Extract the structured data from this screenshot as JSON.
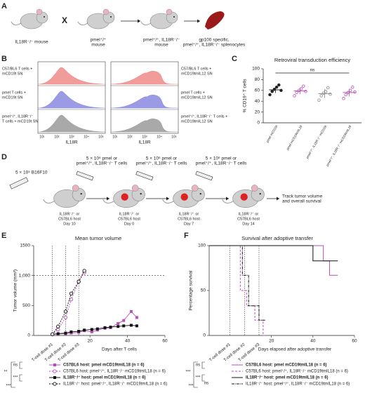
{
  "panels": {
    "A": {
      "letter": "A",
      "cross": "X",
      "labels": [
        [
          "IL18R⁻/⁻ mouse"
        ],
        [
          "pmel⁺/⁺",
          "mouse"
        ],
        [
          "pmel⁺/⁺, IL18R⁻/⁻",
          "mouse"
        ],
        [
          "gp100 specific,",
          "pmel⁺/⁺, IL18R⁻/⁻ splenocytes"
        ]
      ]
    },
    "B": {
      "letter": "B",
      "left_labels": [
        [
          "C57/BL6 T cells +",
          "mCD19t SN"
        ],
        [
          "pmel T cells +",
          "mCD19t SN"
        ],
        [
          "pmel⁺/⁺, IL18R⁻/⁻",
          "T cells + mCD19t SN"
        ]
      ],
      "right_labels": [
        [
          "C57/BL6 T cells +",
          "mCD19tmIL12 SN"
        ],
        [
          "pmel T cells +",
          "mCD19tmIL12 SN"
        ],
        [
          "pmel⁺/⁺, IL18R⁻/⁻ T cells +",
          "mCD19tmIL12 SN"
        ]
      ],
      "colors": [
        "#f08a8a",
        "#8a8ae0",
        "#9a9a9a"
      ],
      "xticks": [
        "10¹",
        "10²",
        "10³",
        "10⁴",
        "10⁵"
      ],
      "xlabel": "IL18R"
    },
    "D": {
      "letter": "D",
      "tumor": [
        "5 × 10⁵ B16F10"
      ],
      "doses": [
        [
          "5 × 10⁶ pmel or",
          "pmel⁺/⁺, IL18R⁻/⁻ T cells"
        ],
        [
          "5 × 10⁶ pmel or",
          "pmel⁺/⁺, IL18R⁻/⁻ T cells"
        ],
        [
          "5 × 10⁶ pmel or",
          "pmel⁺/⁺, IL18R⁻/⁻ T cells"
        ]
      ],
      "hosts": [
        [
          "IL18R⁻/⁻ or",
          "C57BL6 host",
          "Day 10"
        ],
        [
          "IL18R⁻/⁻ or",
          "C57BL6 host",
          "Day 0"
        ],
        [
          "IL18R⁻/⁻ or",
          "C57BL6 host",
          "Day 7"
        ],
        [
          "IL18R⁻/⁻ or",
          "C57BL6 host",
          "Day 14"
        ]
      ],
      "track": [
        "Track tumor volume",
        "and overall survival"
      ]
    }
  },
  "chart_data": [
    {
      "type": "dot",
      "panel": "C",
      "title": "Retroviral transduction efficiency",
      "ylabel": "% CD19⁺ T cells",
      "categories": [
        "pmel mCD19t",
        "pmel mCD19tmIL18",
        "pmel⁺/⁺, IL18R⁻/⁻ mCD19t",
        "pmel⁺/⁺, IL18R⁻/⁻ mCD19tmIL18"
      ],
      "colors": [
        "#222222",
        "#b84fb5",
        "#888888",
        "#b84fb5"
      ],
      "points": [
        [
          52,
          58,
          62,
          66,
          70,
          60
        ],
        [
          50,
          56,
          60,
          63,
          68,
          58
        ],
        [
          42,
          50,
          55,
          58,
          65,
          53
        ],
        [
          45,
          52,
          56,
          60,
          66,
          57
        ]
      ],
      "means": [
        61,
        59,
        54,
        56
      ],
      "sds": [
        6,
        6,
        8,
        7
      ],
      "ylim": [
        0,
        100
      ],
      "yticks": [
        0,
        20,
        40,
        60,
        80,
        100
      ],
      "annotation": "ns"
    },
    {
      "type": "line",
      "panel": "E",
      "title": "Mean tumor volume",
      "ylabel": "Tumor volume (mm³)",
      "xlabel": "Days after T cells",
      "x": [
        0,
        3,
        7,
        10,
        14,
        17,
        21,
        24,
        28,
        31,
        35,
        38,
        42,
        45
      ],
      "series": [
        {
          "name": "C57BL6 host: pmel mCD19tmIL18 (n = 6)",
          "color": "#b84fb5",
          "marker": "square",
          "dash": false,
          "bold": true,
          "values": [
            20,
            25,
            30,
            40,
            50,
            80,
            60,
            90,
            120,
            130,
            200,
            250,
            400,
            300
          ]
        },
        {
          "name": "C57BL6 host: pmel⁺/⁺, IL18R⁻/⁻ mCD19tmIL18 (n = 6)",
          "color": "#b84fb5",
          "marker": "circle",
          "dash": true,
          "bold": false,
          "values": [
            20,
            100,
            300,
            600,
            900,
            1050,
            null,
            null,
            null,
            null,
            null,
            null,
            null,
            null
          ]
        },
        {
          "name": "IL18R⁻/⁻ host: pmel mCD19tmIL18 (n = 6)",
          "color": "#111111",
          "marker": "square",
          "dash": false,
          "bold": true,
          "values": [
            20,
            30,
            40,
            60,
            70,
            90,
            100,
            110,
            130,
            140,
            150,
            160,
            170,
            160
          ]
        },
        {
          "name": "IL18R⁻/⁻ host: pmel⁺/⁺, IL18R⁻/⁻ mCD19tmIL18 (n = 6)",
          "color": "#111111",
          "marker": "circle",
          "dash": true,
          "bold": false,
          "values": [
            20,
            150,
            400,
            700,
            900,
            1080,
            null,
            null,
            null,
            null,
            null,
            null,
            null,
            null
          ]
        }
      ],
      "xlim": [
        -10,
        60
      ],
      "xticks": [
        20,
        40,
        60
      ],
      "ylim": [
        0,
        1500
      ],
      "yticks": [
        0,
        500,
        {
          "value": 1000,
          "label": "1,000"
        },
        1500
      ],
      "reference_line": 1000,
      "vlines": [
        {
          "value": 0,
          "label": "T-cell dose #1"
        },
        {
          "value": 7,
          "label": "T-cell dose #2"
        },
        {
          "value": 14,
          "label": "T-cell dose #3"
        }
      ],
      "stats": [
        "**",
        "ns",
        "***",
        "***"
      ]
    },
    {
      "type": "step",
      "panel": "F",
      "title": "Survival after adoptive transfer",
      "ylabel": "Percentage survival",
      "xlabel": "Days elapsed after adoptive transfer",
      "series": [
        {
          "name": "C57BL6 host: pmel mCD19tmIL18 (n = 6)",
          "color": "#b84fb5",
          "dash": "",
          "bold": true,
          "x": [
            -10,
            45,
            45,
            48,
            48,
            52
          ],
          "values": [
            100,
            100,
            83,
            83,
            67,
            67
          ]
        },
        {
          "name": "C57BL6 host: pmel⁺/⁺, IL18R⁻/⁻ mCD19tmIL18 (n = 6)",
          "color": "#b84fb5",
          "dash": "3,2",
          "bold": false,
          "x": [
            -10,
            5,
            5,
            8,
            8,
            12,
            12,
            16,
            16,
            18
          ],
          "values": [
            100,
            100,
            50,
            50,
            33,
            33,
            17,
            17,
            0,
            0
          ]
        },
        {
          "name": "IL18R⁻/⁻ host: pmel mCD19tmIL18 (n = 6)",
          "color": "#111111",
          "dash": "",
          "bold": true,
          "x": [
            -10,
            40,
            40,
            52
          ],
          "values": [
            100,
            100,
            83,
            83
          ]
        },
        {
          "name": "IL18R⁻/⁻ host: pmel⁺/⁺, IL18R⁻/⁻ mCD19tmIL18 (n = 6)",
          "color": "#111111",
          "dash": "4,1,1,1",
          "bold": false,
          "x": [
            -10,
            6,
            6,
            9,
            9,
            14,
            14,
            17
          ],
          "values": [
            100,
            100,
            67,
            67,
            33,
            33,
            17,
            17
          ]
        }
      ],
      "xlim": [
        -10,
        60
      ],
      "xticks": [
        20,
        40,
        60
      ],
      "ylim": [
        0,
        100
      ],
      "yticks": [
        0,
        50,
        100
      ],
      "vlines": [
        {
          "value": 0,
          "label": "T-cell dose #1"
        },
        {
          "value": 7,
          "label": "T-cell dose #2"
        },
        {
          "value": 14,
          "label": "T-cell dose #3"
        }
      ],
      "stats": [
        "***",
        "ns",
        "***",
        "***",
        "ns"
      ]
    }
  ]
}
